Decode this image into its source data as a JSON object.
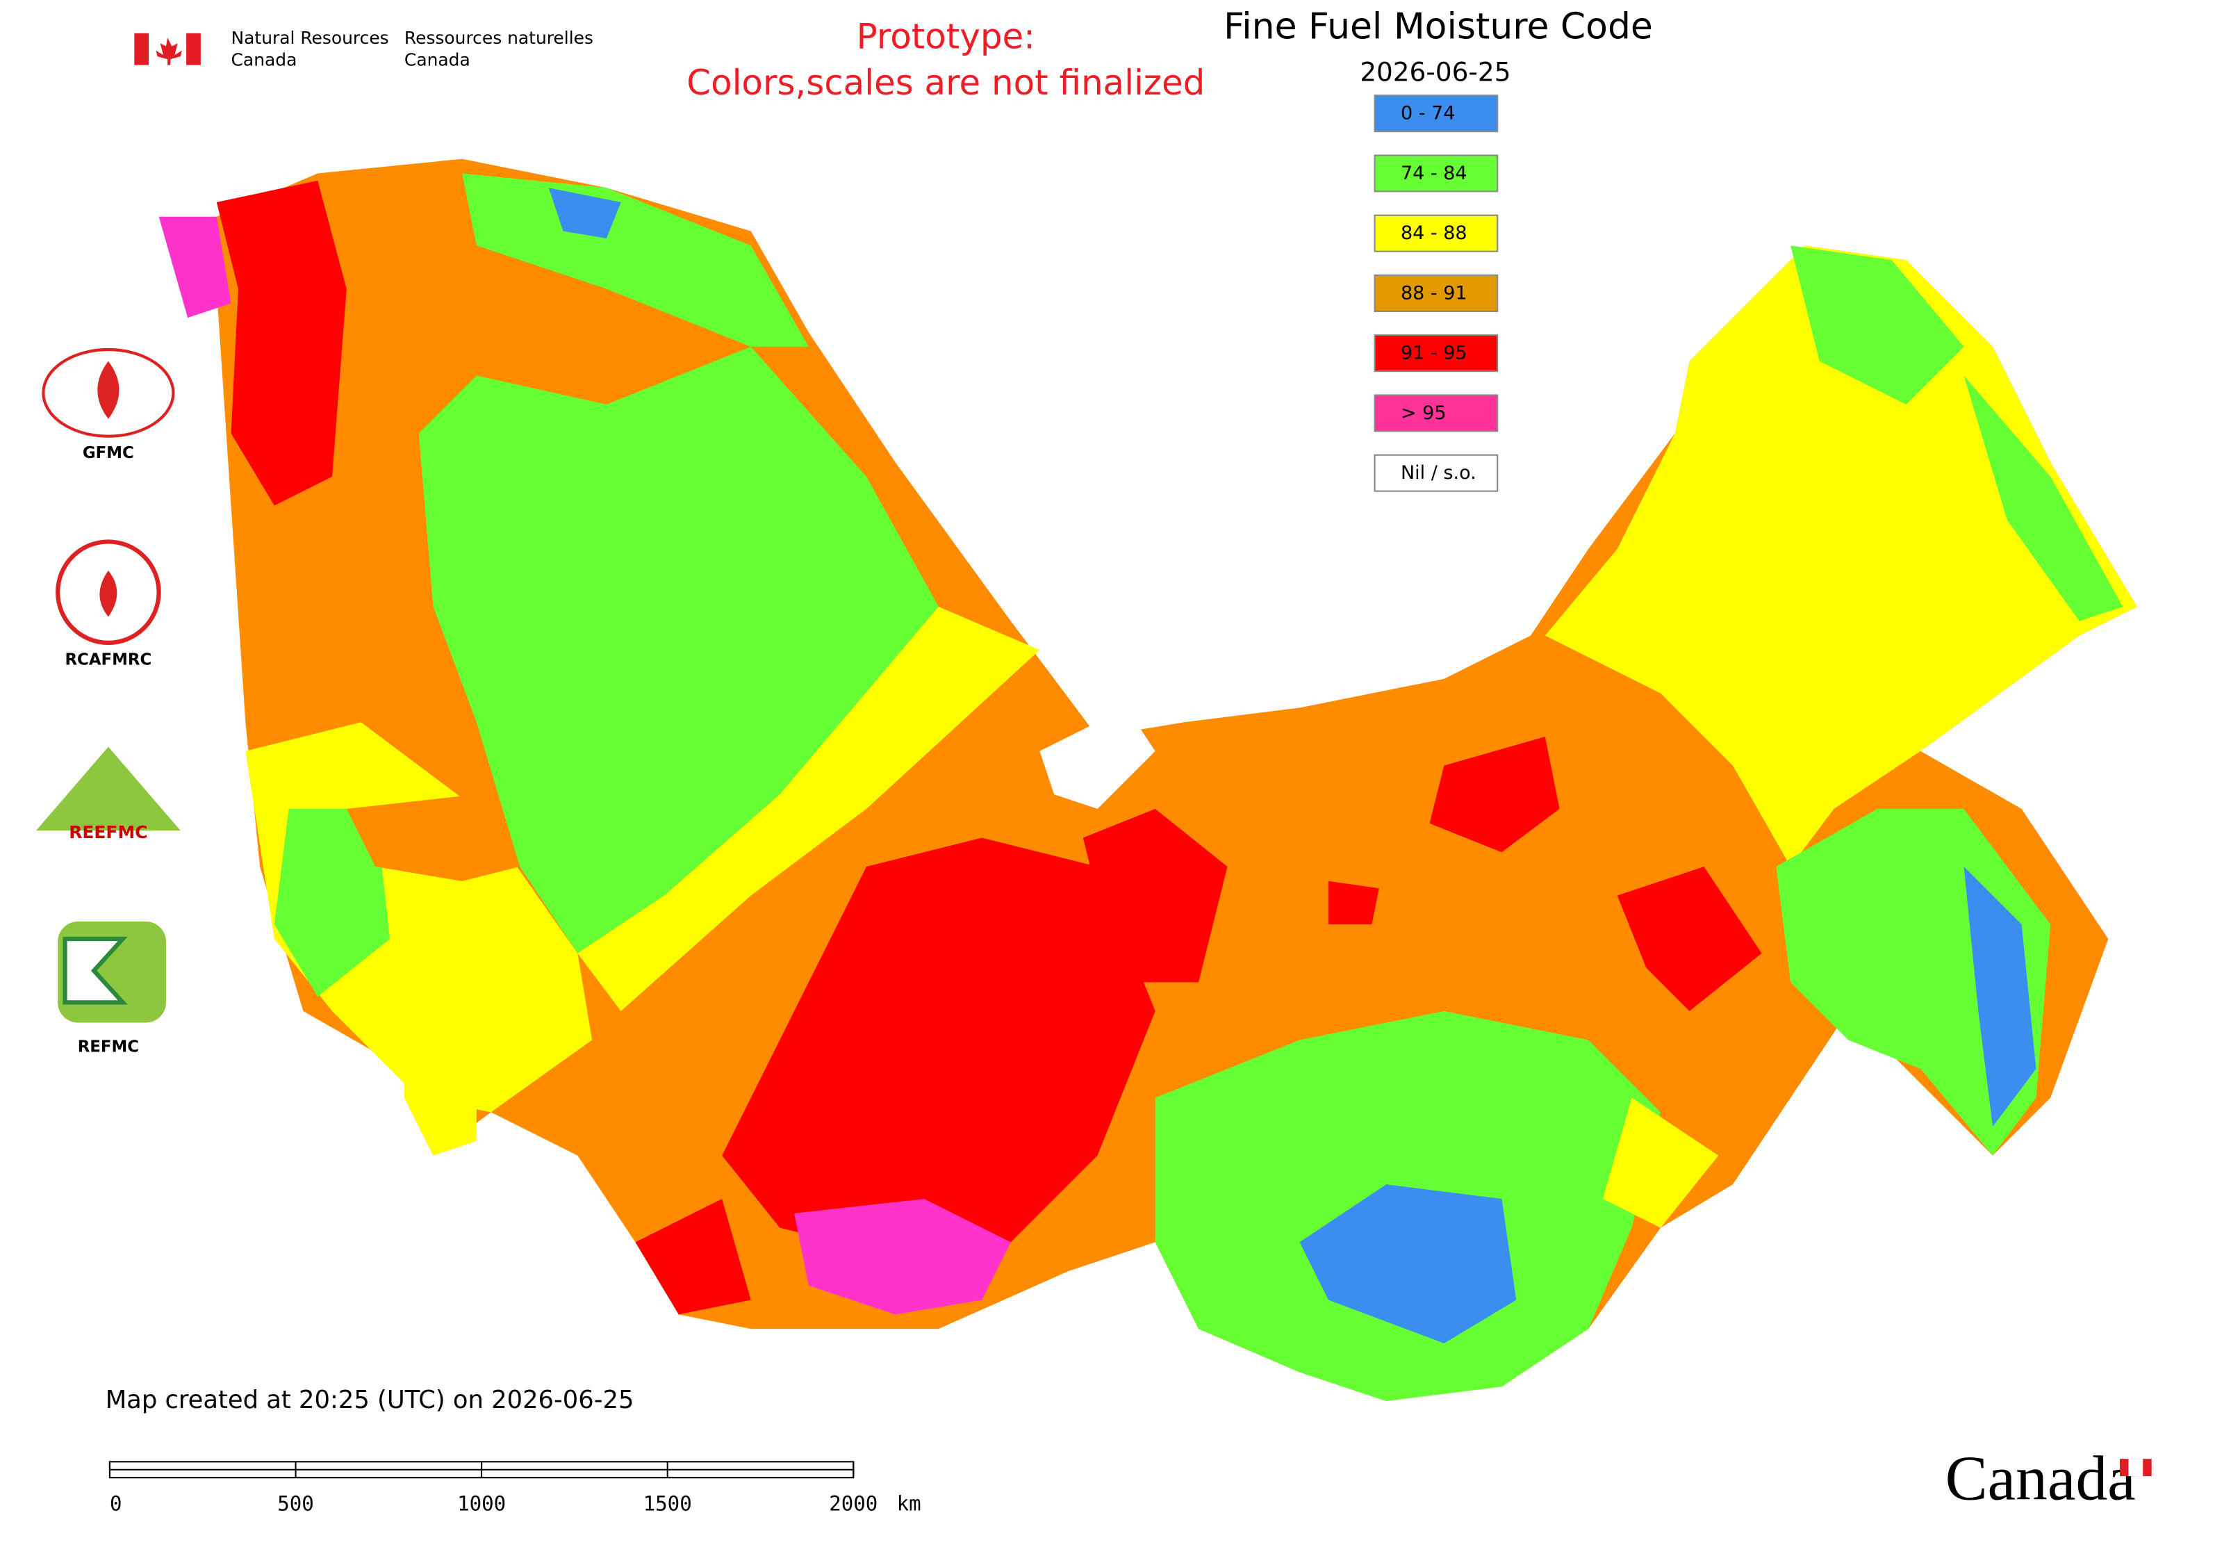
{
  "header": {
    "department_en": [
      "Natural Resources",
      "Canada"
    ],
    "department_fr": [
      "Ressources naturelles",
      "Canada"
    ]
  },
  "notice": [
    "Prototype:",
    "Colors,scales are not finalized"
  ],
  "title": "Fine Fuel Moisture Code",
  "date": "2026-06-25",
  "legend": [
    {
      "label": "0 - 74",
      "color": "#3a8ef0"
    },
    {
      "label": "74 - 84",
      "color": "#66ff33"
    },
    {
      "label": "84 - 88",
      "color": "#ffff00"
    },
    {
      "label": "88 - 91",
      "color": "#e39a00"
    },
    {
      "label": "91 - 95",
      "color": "#ff0000"
    },
    {
      "label": "> 95",
      "color": "#ff3399"
    },
    {
      "label": "Nil / s.o.",
      "color": "#ffffff"
    }
  ],
  "logos": [
    "GFMC",
    "RCAFMRC",
    "REEFMC",
    "REFMC"
  ],
  "footer": "Map created at 20:25 (UTC) on 2026-06-25",
  "scale_bar": {
    "ticks": [
      0,
      500,
      1000,
      1500,
      2000
    ],
    "unit": "km"
  },
  "wordmark": "Canada"
}
